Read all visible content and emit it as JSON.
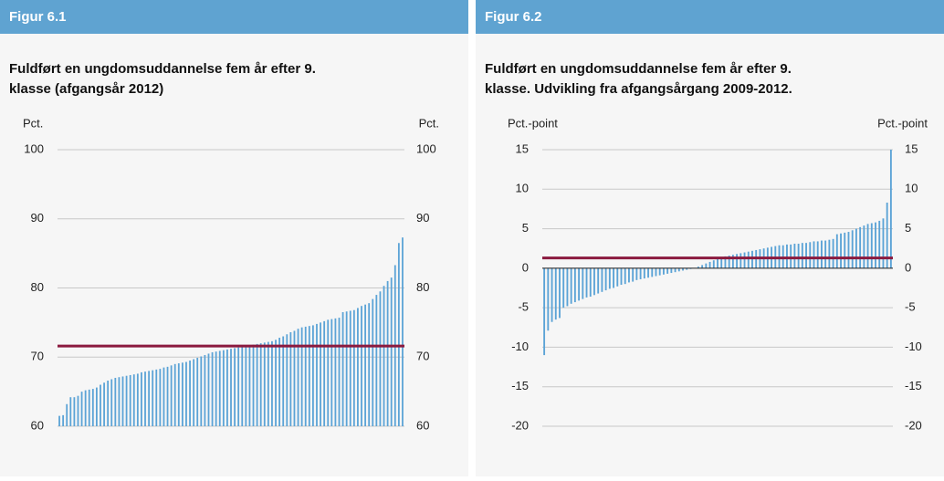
{
  "chart_data": [
    {
      "type": "bar",
      "figure_label": "Figur 6.1",
      "title_lines": [
        "Fuldført en ungdomsuddannelse fem år efter 9.",
        "klasse (afgangsår 2012)"
      ],
      "ylabel": "Pct.",
      "y2label": "Pct.",
      "color": "#5ba3d6",
      "reference_line": 71.6,
      "reference_color": "#8b1a3f",
      "ylim": [
        60,
        100
      ],
      "yticks": [
        60,
        70,
        80,
        90,
        100
      ],
      "y2lim": [
        60,
        100
      ],
      "y2ticks": [
        60,
        70,
        80,
        90,
        100
      ],
      "grid": true,
      "values": [
        61.5,
        61.6,
        63.2,
        64.2,
        64.2,
        64.4,
        65,
        65.2,
        65.3,
        65.4,
        65.6,
        66,
        66.3,
        66.6,
        66.8,
        67,
        67.1,
        67.2,
        67.3,
        67.4,
        67.5,
        67.6,
        67.8,
        67.9,
        68,
        68.1,
        68.2,
        68.3,
        68.5,
        68.6,
        68.8,
        69,
        69.1,
        69.2,
        69.3,
        69.5,
        69.7,
        69.9,
        70.1,
        70.3,
        70.5,
        70.7,
        70.8,
        70.9,
        71,
        71.1,
        71.2,
        71.3,
        71.4,
        71.5,
        71.6,
        71.7,
        71.8,
        71.9,
        72,
        72.1,
        72.2,
        72.3,
        72.5,
        72.8,
        73,
        73.3,
        73.6,
        73.8,
        74.1,
        74.3,
        74.4,
        74.5,
        74.6,
        74.8,
        75,
        75.2,
        75.4,
        75.5,
        75.6,
        75.7,
        76.5,
        76.6,
        76.7,
        76.8,
        77.1,
        77.4,
        77.6,
        77.8,
        78.4,
        79,
        79.5,
        80.3,
        81,
        81.5,
        83.3,
        86.5,
        87.3
      ]
    },
    {
      "type": "bar",
      "figure_label": "Figur 6.2",
      "title_lines": [
        "Fuldført en ungdomsuddannelse fem år efter 9.",
        "klasse. Udvikling fra afgangsårgang 2009-2012."
      ],
      "ylabel": "Pct.-point",
      "y2label": "Pct.-point",
      "color": "#5ba3d6",
      "reference_line": 1.3,
      "reference_color": "#8b1a3f",
      "ylim": [
        -20,
        15
      ],
      "yticks": [
        -20,
        -15,
        -10,
        -5,
        0,
        5,
        10,
        15
      ],
      "y2lim": [
        -20,
        15
      ],
      "y2ticks": [
        -20,
        -15,
        -10,
        -5,
        0,
        5,
        10,
        15
      ],
      "grid": true,
      "values": [
        -11,
        -7.9,
        -6.8,
        -6.5,
        -6.3,
        -5,
        -4.8,
        -4.5,
        -4.3,
        -4.1,
        -3.9,
        -3.7,
        -3.6,
        -3.4,
        -3.2,
        -3,
        -2.8,
        -2.6,
        -2.5,
        -2.3,
        -2.1,
        -2,
        -1.8,
        -1.7,
        -1.5,
        -1.4,
        -1.3,
        -1.2,
        -1.1,
        -1,
        -0.9,
        -0.8,
        -0.7,
        -0.6,
        -0.5,
        -0.4,
        -0.3,
        -0.2,
        -0.1,
        0,
        0.2,
        0.4,
        0.6,
        0.8,
        1,
        1.2,
        1.4,
        1.5,
        1.6,
        1.7,
        1.8,
        1.9,
        2,
        2.1,
        2.2,
        2.3,
        2.4,
        2.5,
        2.6,
        2.7,
        2.8,
        2.9,
        2.9,
        3,
        3,
        3.1,
        3.1,
        3.2,
        3.2,
        3.3,
        3.4,
        3.4,
        3.5,
        3.5,
        3.6,
        3.7,
        4.3,
        4.4,
        4.5,
        4.6,
        4.8,
        5,
        5.2,
        5.4,
        5.6,
        5.7,
        5.8,
        6,
        6.3,
        8.3,
        15
      ]
    }
  ]
}
